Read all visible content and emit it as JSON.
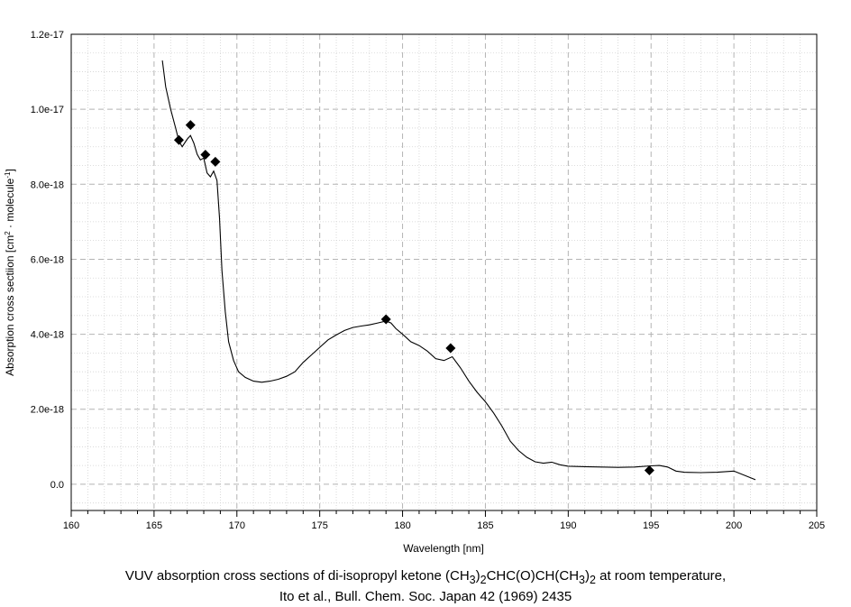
{
  "chart_data": {
    "type": "line",
    "xlabel": "Wavelength [nm]",
    "ylabel": {
      "main": "Absorption cross sectiion [cm",
      "sup1": "2",
      "mid": " · molecule",
      "sup2": "-1",
      "end": "]"
    },
    "xlim": [
      160,
      205
    ],
    "ylim": [
      -7e-19,
      1.2e-17
    ],
    "x_ticks": [
      160,
      165,
      170,
      175,
      180,
      185,
      190,
      195,
      200,
      205
    ],
    "y_ticks": [
      0,
      2e-18,
      4e-18,
      6e-18,
      8e-18,
      1e-17,
      1.2e-17
    ],
    "x_tick_labels": [
      "160",
      "165",
      "170",
      "175",
      "180",
      "185",
      "190",
      "195",
      "200",
      "205"
    ],
    "y_tick_labels": [
      "0.0",
      "2.0e-18",
      "4.0e-18",
      "6.0e-18",
      "8.0e-18",
      "1.0e-17",
      "1.2e-17"
    ],
    "grid": true,
    "series": [
      {
        "style": "line",
        "color": "#000000",
        "x": [
          165.5,
          165.7,
          166.0,
          166.3,
          166.5,
          166.7,
          167.0,
          167.2,
          167.4,
          167.6,
          167.8,
          168.0,
          168.2,
          168.4,
          168.6,
          168.8,
          168.95,
          169.1,
          169.3,
          169.5,
          169.8,
          170.1,
          170.5,
          171.0,
          171.5,
          172.0,
          172.5,
          173.0,
          173.5,
          174.0,
          174.5,
          175.0,
          175.5,
          176.0,
          176.5,
          177.0,
          177.5,
          178.0,
          178.5,
          179.0,
          179.3,
          179.6,
          180.0,
          180.5,
          181.0,
          181.5,
          182.0,
          182.5,
          183.0,
          183.5,
          184.0,
          184.5,
          185.0,
          185.5,
          186.0,
          186.5,
          187.0,
          187.5,
          188.0,
          188.5,
          189.0,
          189.5,
          190.0,
          191.0,
          192.0,
          193.0,
          194.0,
          195.0,
          195.5,
          196.0,
          196.5,
          197.0,
          198.0,
          199.0,
          200.0,
          201.3
        ],
        "y": [
          1.13e-17,
          1.06e-17,
          1e-17,
          9.5e-18,
          9.15e-18,
          9e-18,
          9.2e-18,
          9.3e-18,
          9.1e-18,
          8.8e-18,
          8.65e-18,
          8.7e-18,
          8.3e-18,
          8.2e-18,
          8.35e-18,
          8.1e-18,
          7.1e-18,
          5.7e-18,
          4.6e-18,
          3.8e-18,
          3.3e-18,
          3e-18,
          2.85e-18,
          2.75e-18,
          2.72e-18,
          2.75e-18,
          2.8e-18,
          2.88e-18,
          3e-18,
          3.25e-18,
          3.45e-18,
          3.65e-18,
          3.85e-18,
          3.98e-18,
          4.1e-18,
          4.18e-18,
          4.22e-18,
          4.25e-18,
          4.3e-18,
          4.35e-18,
          4.3e-18,
          4.15e-18,
          4e-18,
          3.8e-18,
          3.7e-18,
          3.55e-18,
          3.35e-18,
          3.3e-18,
          3.4e-18,
          3.1e-18,
          2.75e-18,
          2.45e-18,
          2.2e-18,
          1.9e-18,
          1.55e-18,
          1.15e-18,
          9e-19,
          7.2e-19,
          6e-19,
          5.6e-19,
          5.9e-19,
          5.2e-19,
          4.8e-19,
          4.7e-19,
          4.6e-19,
          4.5e-19,
          4.6e-19,
          4.9e-19,
          5e-19,
          4.6e-19,
          3.5e-19,
          3.2e-19,
          3.1e-19,
          3.2e-19,
          3.5e-19,
          1.2e-19
        ]
      },
      {
        "style": "markers",
        "marker": "diamond",
        "color": "#000000",
        "x": [
          166.5,
          167.2,
          168.1,
          168.7,
          179.0,
          182.9,
          194.9
        ],
        "y": [
          9.18e-18,
          9.58e-18,
          8.79e-18,
          8.6e-18,
          4.4e-18,
          3.63e-18,
          3.7e-19
        ]
      }
    ]
  },
  "caption": {
    "line1_pre": "VUV absorption cross sections of di-isopropyl ketone (CH",
    "sub_a": "3",
    "line1_mid1": ")",
    "sub_b": "2",
    "line1_mid2": "CHC(O)CH(CH",
    "sub_c": "3",
    "line1_mid3": ")",
    "sub_d": "2",
    "line1_post": " at room temperature,",
    "line2": "Ito et al., Bull. Chem. Soc. Japan 42 (1969) 2435"
  }
}
